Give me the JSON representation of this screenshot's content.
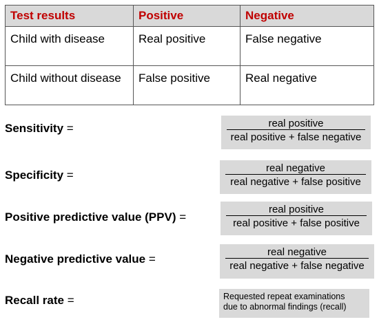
{
  "table": {
    "headers": [
      "Test results",
      "Positive",
      "Negative"
    ],
    "rows": [
      [
        "Child with disease",
        "Real positive",
        "False negative"
      ],
      [
        "Child without disease",
        "False positive",
        "Real negative"
      ]
    ]
  },
  "formulas": {
    "sensitivity": {
      "label": "Sensitivity",
      "equals": " =",
      "numerator": "real positive",
      "denominator": "real positive + false negative"
    },
    "specificity": {
      "label": "Specificity",
      "equals": " =",
      "numerator": "real negative",
      "denominator": "real negative + false positive"
    },
    "ppv": {
      "label": "Positive predictive value (PPV)",
      "equals": " =",
      "numerator": "real positive",
      "denominator": "real positive + false positive"
    },
    "npv": {
      "label": "Negative predictive value",
      "equals": " =",
      "numerator": "real negative",
      "denominator": "real negative + false negative"
    },
    "recall": {
      "label": "Recall rate",
      "equals": " =",
      "line1": "Requested repeat examinations",
      "line2": "due to abnormal findings (recall)"
    }
  },
  "colors": {
    "header_text": "#c00000",
    "header_bg": "#d9d9d9",
    "box_bg": "#d9d9d9"
  }
}
